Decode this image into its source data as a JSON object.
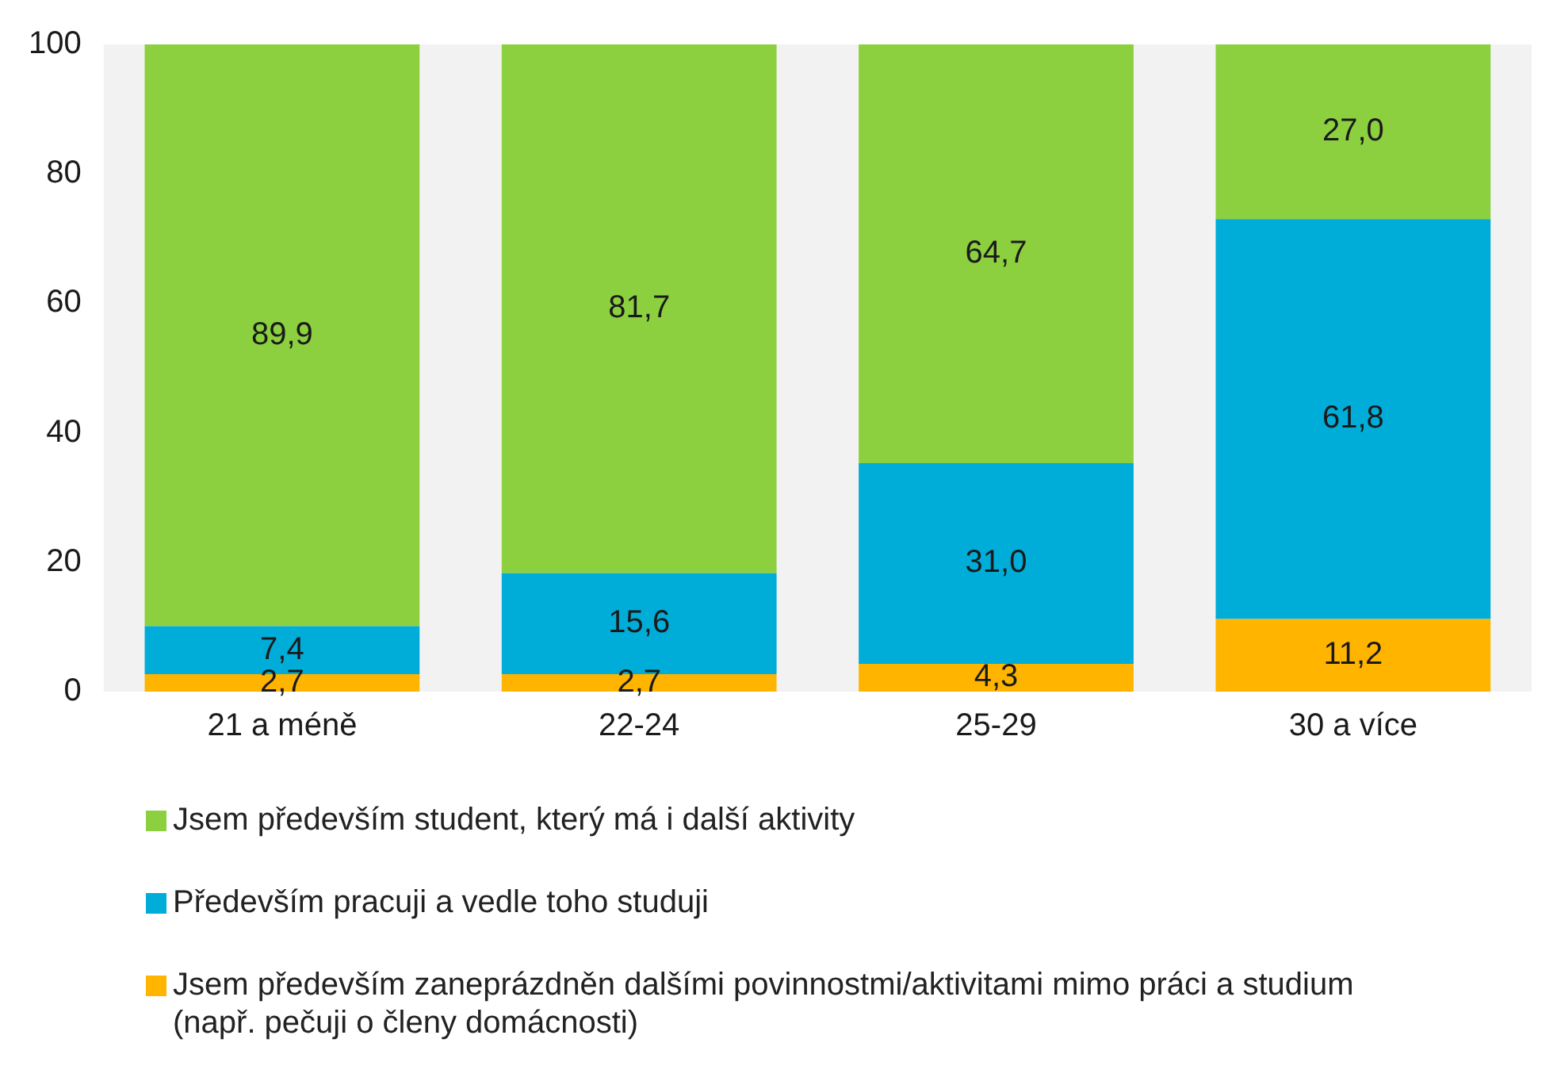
{
  "chart_data": {
    "type": "bar",
    "stacked": true,
    "categories": [
      "21 a méně",
      "22-24",
      "25-29",
      "30 a více"
    ],
    "series": [
      {
        "name": "Jsem především zaneprázdněn dalšími povinnostmi/aktivitami mimo práci a studium (např. pečuji o členy domácnosti)",
        "color": "#ffb400",
        "values": [
          2.7,
          2.7,
          4.3,
          11.2
        ],
        "value_labels": [
          "2,7",
          "2,7",
          "4,3",
          "11,2"
        ]
      },
      {
        "name": "Především pracuji a vedle toho studuji",
        "color": "#00acd8",
        "values": [
          7.4,
          15.6,
          31.0,
          61.8
        ],
        "value_labels": [
          "7,4",
          "15,6",
          "31,0",
          "61,8"
        ]
      },
      {
        "name": "Jsem především student, který má i další aktivity",
        "color": "#8cd040",
        "values": [
          89.9,
          81.7,
          64.7,
          27.0
        ],
        "value_labels": [
          "89,9",
          "81,7",
          "64,7",
          "27,0"
        ]
      }
    ],
    "ylim": [
      0,
      100
    ],
    "yticks": [
      0,
      20,
      40,
      60,
      80,
      100
    ],
    "grid": false,
    "legend": "bottom"
  }
}
